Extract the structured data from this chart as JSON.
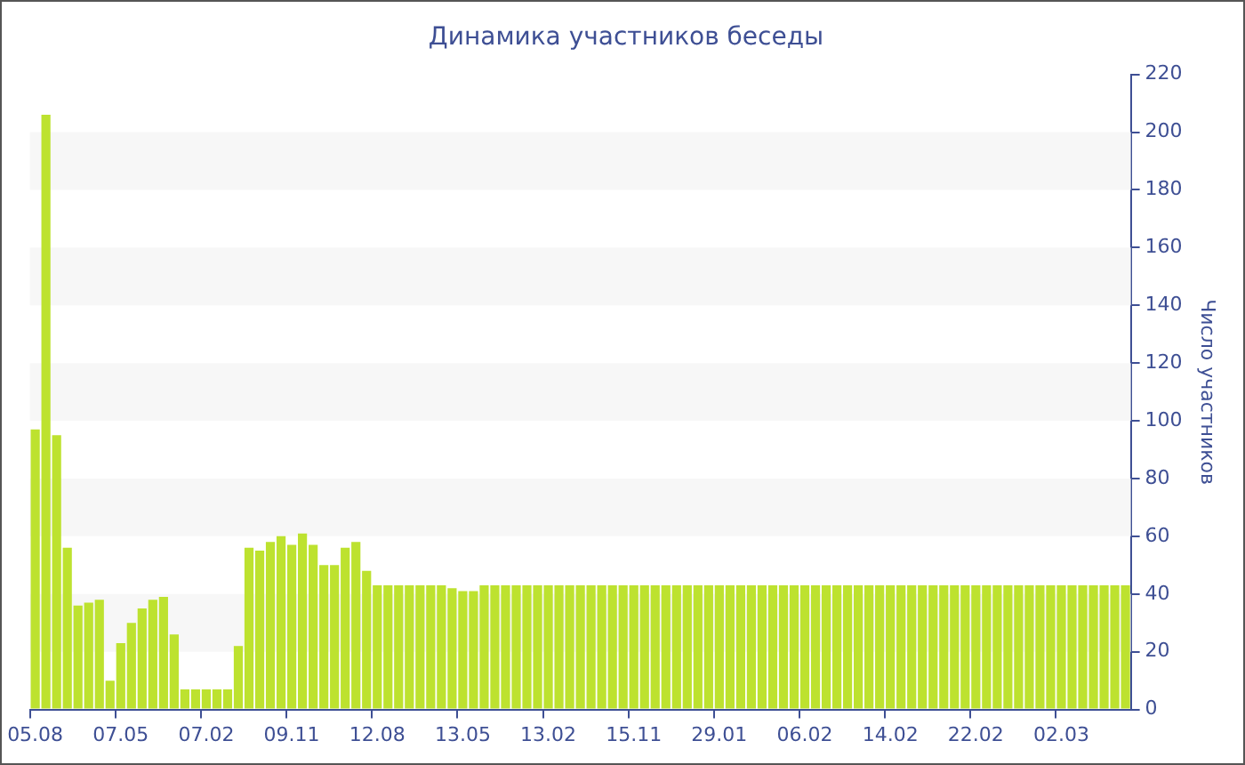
{
  "chart_data": {
    "type": "bar",
    "title": "Динамика участников беседы",
    "ylabel": "Число участников",
    "categories": [
      "05.08",
      null,
      null,
      null,
      null,
      null,
      null,
      null,
      "07.05",
      null,
      null,
      null,
      null,
      null,
      null,
      null,
      "07.02",
      null,
      null,
      null,
      null,
      null,
      null,
      null,
      "09.11",
      null,
      null,
      null,
      null,
      null,
      null,
      null,
      "12.08",
      null,
      null,
      null,
      null,
      null,
      null,
      null,
      "13.05",
      null,
      null,
      null,
      null,
      null,
      null,
      null,
      "13.02",
      null,
      null,
      null,
      null,
      null,
      null,
      null,
      "15.11",
      null,
      null,
      null,
      null,
      null,
      null,
      null,
      "29.01",
      null,
      null,
      null,
      null,
      null,
      null,
      null,
      "06.02",
      null,
      null,
      null,
      null,
      null,
      null,
      null,
      "14.02",
      null,
      null,
      null,
      null,
      null,
      null,
      null,
      "22.02",
      null,
      null,
      null,
      null,
      null,
      null,
      null,
      "02.03",
      null,
      null,
      null,
      null,
      null,
      null
    ],
    "values": [
      97,
      206,
      95,
      56,
      36,
      37,
      38,
      10,
      23,
      30,
      35,
      38,
      39,
      26,
      7,
      7,
      7,
      7,
      7,
      22,
      56,
      55,
      58,
      60,
      57,
      61,
      57,
      50,
      50,
      56,
      58,
      48,
      43,
      43,
      43,
      43,
      43,
      43,
      43,
      42,
      41,
      41,
      43,
      43,
      43,
      43,
      43,
      43,
      43,
      43,
      43,
      43,
      43,
      43,
      43,
      43,
      43,
      43,
      43,
      43,
      43,
      43,
      43,
      43,
      43,
      43,
      43,
      43,
      43,
      43,
      43,
      43,
      43,
      43,
      43,
      43,
      43,
      43,
      43,
      43,
      43,
      43,
      43,
      43,
      43,
      43,
      43,
      43,
      43,
      43,
      43,
      43,
      43,
      43,
      43,
      43,
      43,
      43,
      43,
      43,
      43,
      43,
      43
    ],
    "color": "#bde22f",
    "ylim": [
      0,
      220
    ],
    "yticks": [
      0,
      20,
      40,
      60,
      80,
      100,
      120,
      140,
      160,
      180,
      200,
      220
    ],
    "bands": [
      {
        "axis": "y",
        "from": 20,
        "to": 40,
        "color": "#f7f7f7"
      },
      {
        "axis": "y",
        "from": 60,
        "to": 80,
        "color": "#f7f7f7"
      },
      {
        "axis": "y",
        "from": 100,
        "to": 120,
        "color": "#f7f7f7"
      },
      {
        "axis": "y",
        "from": 140,
        "to": 160,
        "color": "#f7f7f7"
      },
      {
        "axis": "y",
        "from": 180,
        "to": 200,
        "color": "#f7f7f7"
      }
    ],
    "legend": false
  }
}
